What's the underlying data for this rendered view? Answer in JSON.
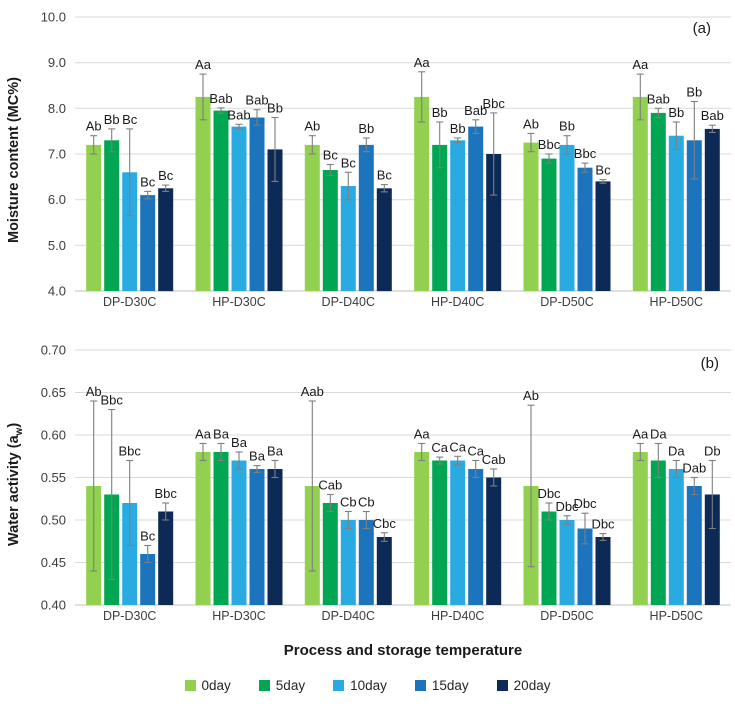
{
  "figure": {
    "x_axis_title": "Process and storage temperature"
  },
  "chart_data": [
    {
      "type": "bar",
      "panel_label": "(a)",
      "ylabel": "Moisture content (MC%)",
      "ylabel_parts": {
        "pre": "Moisture content (MC%)",
        "sub": "",
        "post": ""
      },
      "ylim": [
        4.0,
        10.0
      ],
      "ytick_values": [
        10.0,
        9.0,
        8.0,
        7.0,
        6.0,
        5.0,
        4.0
      ],
      "ytick_labels": [
        "10.0",
        "9.0",
        "8.0",
        "7.0",
        "6.0",
        "5.0",
        "4.0"
      ],
      "grid": true,
      "legend_position": "bottom",
      "categories": [
        "DP-D30C",
        "HP-D30C",
        "DP-D40C",
        "HP-D40C",
        "DP-D50C",
        "HP-D50C"
      ],
      "series": [
        {
          "name": "0day",
          "color": "#92D050",
          "values": [
            7.2,
            8.25,
            7.2,
            8.25,
            7.25,
            8.25
          ],
          "errors": [
            0.2,
            0.5,
            0.2,
            0.55,
            0.2,
            0.5
          ],
          "stat_labels": [
            "Ab",
            "Aa",
            "Ab",
            "Aa",
            "Ab",
            "Aa"
          ]
        },
        {
          "name": "5day",
          "color": "#00A651",
          "values": [
            7.3,
            7.95,
            6.65,
            7.2,
            6.9,
            7.9
          ],
          "errors": [
            0.25,
            0.06,
            0.12,
            0.5,
            0.1,
            0.1
          ],
          "stat_labels": [
            "Bb",
            "Bab",
            "Bc",
            "Bb",
            "Bbc",
            "Bab"
          ]
        },
        {
          "name": "10day",
          "color": "#29ABE2",
          "values": [
            6.6,
            7.6,
            6.3,
            7.3,
            7.2,
            7.4
          ],
          "errors": [
            0.95,
            0.05,
            0.3,
            0.05,
            0.2,
            0.3
          ],
          "stat_labels": [
            "Bc",
            "Bab",
            "Bc",
            "Bb",
            "Bb",
            "Bb"
          ]
        },
        {
          "name": "15day",
          "color": "#1C75BC",
          "values": [
            6.1,
            7.8,
            7.2,
            7.6,
            6.7,
            7.3
          ],
          "errors": [
            0.08,
            0.17,
            0.15,
            0.15,
            0.1,
            0.85
          ],
          "stat_labels": [
            "Bc",
            "Bab",
            "Bb",
            "Bab",
            "Bbc",
            "Bb"
          ]
        },
        {
          "name": "20day",
          "color": "#0D2956",
          "values": [
            6.25,
            7.1,
            6.25,
            7.0,
            6.4,
            7.55
          ],
          "errors": [
            0.07,
            0.7,
            0.08,
            0.9,
            0.04,
            0.08
          ],
          "stat_labels": [
            "Bc",
            "Bb",
            "Bc",
            "Bbc",
            "Bc",
            "Bab"
          ]
        }
      ]
    },
    {
      "type": "bar",
      "panel_label": "(b)",
      "ylabel": "Water activity (aw)",
      "ylabel_parts": {
        "pre": "Water activity (a",
        "sub": "w",
        "post": ")"
      },
      "ylim": [
        0.4,
        0.7
      ],
      "ytick_values": [
        0.7,
        0.65,
        0.6,
        0.55,
        0.5,
        0.45,
        0.4
      ],
      "ytick_labels": [
        "0.70",
        "0.65",
        "0.60",
        "0.55",
        "0.50",
        "0.45",
        "0.40"
      ],
      "grid": true,
      "legend_position": "bottom",
      "categories": [
        "DP-D30C",
        "HP-D30C",
        "DP-D40C",
        "HP-D40C",
        "DP-D50C",
        "HP-D50C"
      ],
      "series": [
        {
          "name": "0day",
          "color": "#92D050",
          "values": [
            0.54,
            0.58,
            0.54,
            0.58,
            0.54,
            0.58
          ],
          "errors": [
            0.1,
            0.01,
            0.1,
            0.01,
            0.095,
            0.01
          ],
          "stat_labels": [
            "Ab",
            "Aa",
            "Aab",
            "Aa",
            "Ab",
            "Aa"
          ]
        },
        {
          "name": "5day",
          "color": "#00A651",
          "values": [
            0.53,
            0.58,
            0.52,
            0.57,
            0.51,
            0.57
          ],
          "errors": [
            0.1,
            0.01,
            0.01,
            0.004,
            0.01,
            0.02
          ],
          "stat_labels": [
            "Bbc",
            "Ba",
            "Cab",
            "Ca",
            "Dbc",
            "Da"
          ]
        },
        {
          "name": "10day",
          "color": "#29ABE2",
          "values": [
            0.52,
            0.57,
            0.5,
            0.57,
            0.5,
            0.56
          ],
          "errors": [
            0.05,
            0.01,
            0.01,
            0.005,
            0.005,
            0.01
          ],
          "stat_labels": [
            "Bbc",
            "Ba",
            "Cb",
            "Ca",
            "Dbc",
            "Da"
          ]
        },
        {
          "name": "15day",
          "color": "#1C75BC",
          "values": [
            0.46,
            0.56,
            0.5,
            0.56,
            0.49,
            0.54
          ],
          "errors": [
            0.01,
            0.004,
            0.01,
            0.01,
            0.018,
            0.01
          ],
          "stat_labels": [
            "Bc",
            "Ba",
            "Cb",
            "Ca",
            "Dbc",
            "Dab"
          ]
        },
        {
          "name": "20day",
          "color": "#0D2956",
          "values": [
            0.51,
            0.56,
            0.48,
            0.55,
            0.48,
            0.53
          ],
          "errors": [
            0.01,
            0.01,
            0.005,
            0.01,
            0.004,
            0.04
          ],
          "stat_labels": [
            "Bbc",
            "Ba",
            "Cbc",
            "Cab",
            "Dbc",
            "Db"
          ]
        }
      ]
    }
  ],
  "legend": {
    "items": [
      "0day",
      "5day",
      "10day",
      "15day",
      "20day"
    ]
  }
}
